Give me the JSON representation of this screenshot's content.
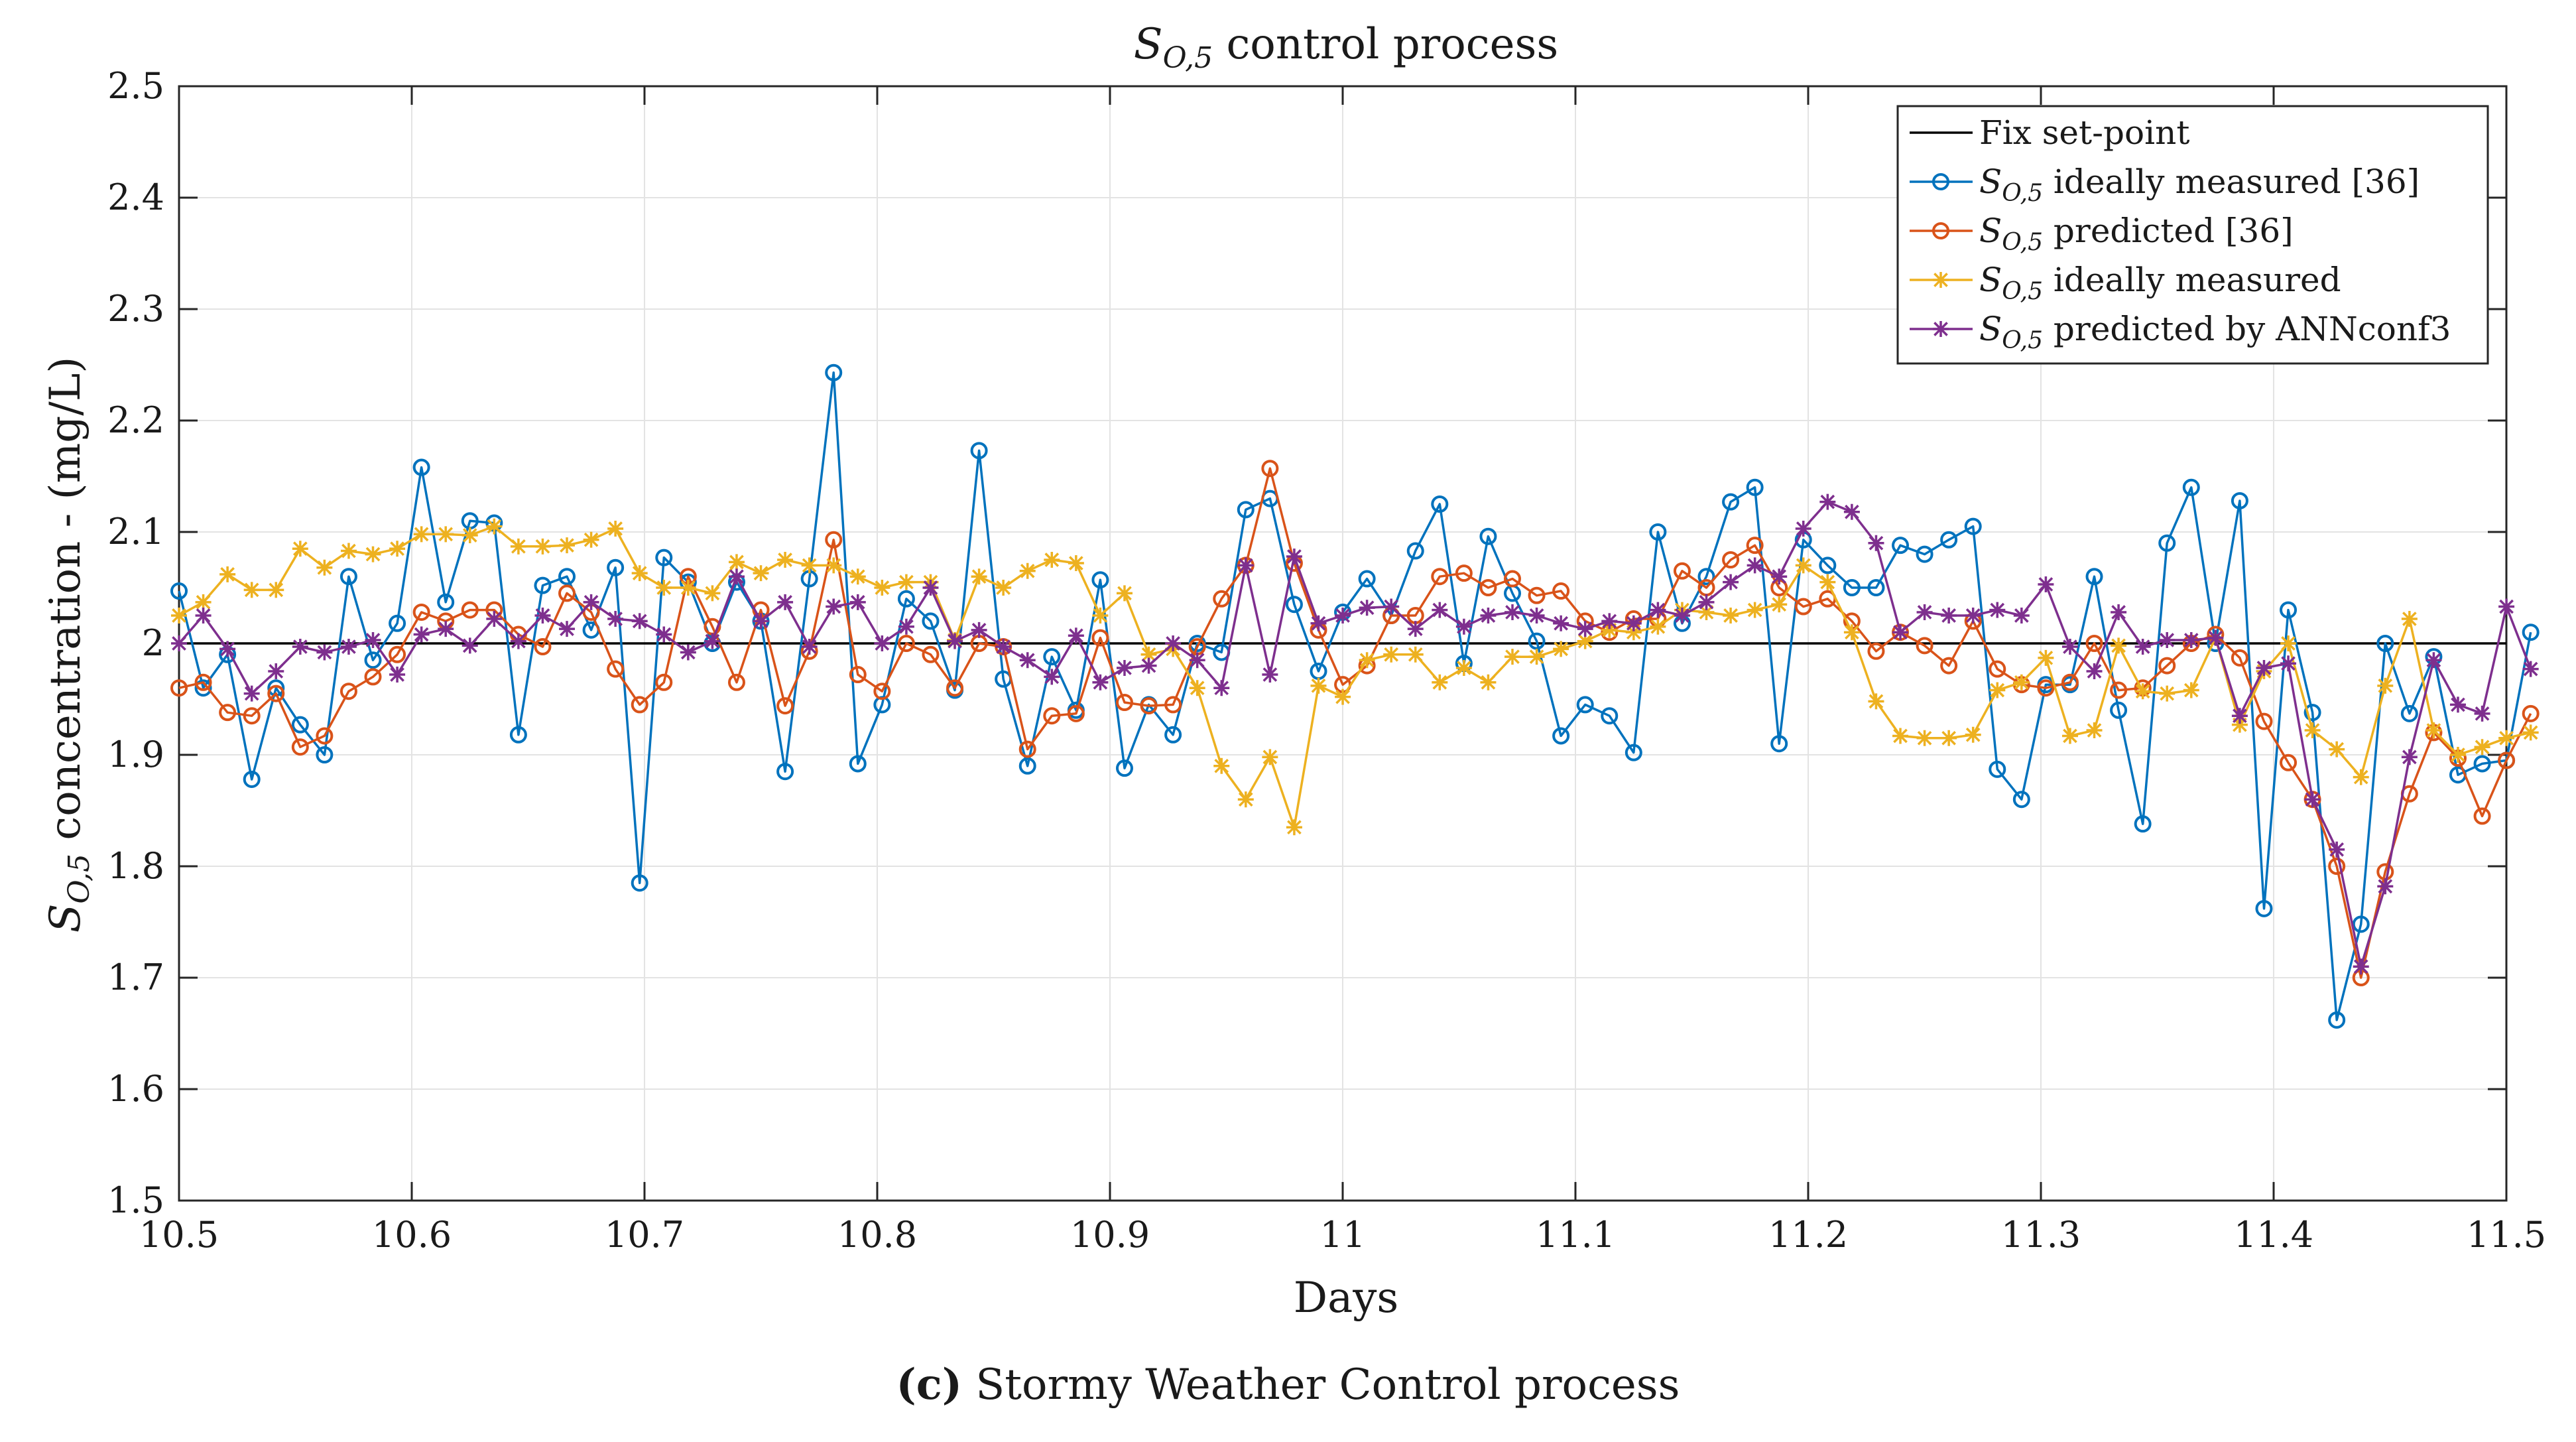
{
  "caption": {
    "label": "(c)",
    "text": "Stormy Weather Control process"
  },
  "chart_data": {
    "type": "line",
    "title": "S_{O,5} control process",
    "title_symbol": "S",
    "title_subscript": "O,5",
    "title_rest": " control process",
    "xlabel": "Days",
    "ylabel_symbol": "S",
    "ylabel_subscript": "O,5",
    "ylabel_rest": " concentration - (mg/L)",
    "xlim": [
      10.5,
      11.5
    ],
    "ylim": [
      1.5,
      2.5
    ],
    "xticks": [
      10.5,
      10.6,
      10.7,
      10.8,
      10.9,
      11,
      11.1,
      11.2,
      11.3,
      11.4,
      11.5
    ],
    "xtick_labels": [
      "10.5",
      "10.6",
      "10.7",
      "10.8",
      "10.9",
      "11",
      "11.1",
      "11.2",
      "11.3",
      "11.4",
      "11.5"
    ],
    "yticks": [
      1.5,
      1.6,
      1.7,
      1.8,
      1.9,
      2.0,
      2.1,
      2.2,
      2.3,
      2.4,
      2.5
    ],
    "ytick_labels": [
      "1.5",
      "1.6",
      "1.7",
      "1.8",
      "1.9",
      "2",
      "2.1",
      "2.2",
      "2.3",
      "2.4",
      "2.5"
    ],
    "grid": true,
    "legend_position": "top-right",
    "x_start": 10.5,
    "x_step": 0.010417,
    "setpoint": {
      "name": "Fix set-point",
      "value": 2.0,
      "color": "#000000"
    },
    "series": [
      {
        "name": "S_{O,5} ideally measured [36]",
        "legend_symbol": "S",
        "legend_subscript": "O,5",
        "legend_rest": " ideally measured [36]",
        "color": "#0072BD",
        "marker": "circle",
        "values": [
          2.047,
          1.96,
          1.99,
          1.878,
          1.96,
          1.927,
          1.9,
          2.06,
          1.985,
          2.018,
          2.158,
          2.037,
          2.11,
          2.108,
          1.918,
          2.052,
          2.06,
          2.012,
          2.068,
          1.785,
          2.077,
          2.055,
          2.0,
          2.055,
          2.02,
          1.885,
          2.058,
          2.243,
          1.892,
          1.945,
          2.04,
          2.02,
          1.958,
          2.173,
          1.968,
          1.89,
          1.988,
          1.94,
          2.057,
          1.888,
          1.945,
          1.918,
          2.0,
          1.992,
          2.12,
          2.13,
          2.035,
          1.975,
          2.028,
          2.058,
          2.025,
          2.083,
          2.125,
          1.982,
          2.096,
          2.045,
          2.002,
          1.917,
          1.945,
          1.935,
          1.902,
          2.1,
          2.018,
          2.06,
          2.127,
          2.14,
          1.91,
          2.093,
          2.07,
          2.05,
          2.05,
          2.088,
          2.08,
          2.093,
          2.105,
          1.887,
          1.86,
          1.963,
          1.963,
          2.06,
          1.94,
          1.838,
          2.09,
          2.14,
          2.0,
          2.128,
          1.762,
          2.03,
          1.938,
          1.662,
          1.748,
          2.0,
          1.937,
          1.988,
          1.882,
          1.892,
          1.895,
          2.01
        ]
      },
      {
        "name": "S_{O,5} predicted [36]",
        "legend_symbol": "S",
        "legend_subscript": "O,5",
        "legend_rest": " predicted [36]",
        "color": "#D95319",
        "marker": "circle",
        "values": [
          1.96,
          1.965,
          1.938,
          1.935,
          1.955,
          1.907,
          1.917,
          1.957,
          1.97,
          1.99,
          2.028,
          2.02,
          2.03,
          2.03,
          2.008,
          1.997,
          2.045,
          2.028,
          1.977,
          1.945,
          1.965,
          2.06,
          2.015,
          1.965,
          2.03,
          1.944,
          1.993,
          2.093,
          1.972,
          1.957,
          2.0,
          1.99,
          1.96,
          2.0,
          1.997,
          1.905,
          1.935,
          1.937,
          2.005,
          1.947,
          1.944,
          1.945,
          1.997,
          2.04,
          2.07,
          2.157,
          2.072,
          2.012,
          1.963,
          1.98,
          2.025,
          2.025,
          2.06,
          2.063,
          2.05,
          2.058,
          2.043,
          2.047,
          2.02,
          2.01,
          2.022,
          2.022,
          2.065,
          2.05,
          2.075,
          2.088,
          2.05,
          2.033,
          2.04,
          2.02,
          1.993,
          2.01,
          1.998,
          1.98,
          2.02,
          1.977,
          1.963,
          1.96,
          1.965,
          2.0,
          1.958,
          1.96,
          1.98,
          2.0,
          2.008,
          1.987,
          1.93,
          1.893,
          1.86,
          1.8,
          1.7,
          1.795,
          1.865,
          1.92,
          1.897,
          1.845,
          1.895,
          1.937
        ]
      },
      {
        "name": "S_{O,5} ideally measured",
        "legend_symbol": "S",
        "legend_subscript": "O,5",
        "legend_rest": " ideally measured",
        "color": "#EDB120",
        "marker": "asterisk",
        "values": [
          2.025,
          2.037,
          2.062,
          2.048,
          2.048,
          2.085,
          2.068,
          2.083,
          2.08,
          2.085,
          2.098,
          2.098,
          2.097,
          2.105,
          2.087,
          2.087,
          2.088,
          2.093,
          2.103,
          2.063,
          2.05,
          2.05,
          2.045,
          2.073,
          2.063,
          2.075,
          2.07,
          2.07,
          2.06,
          2.05,
          2.055,
          2.055,
          2.003,
          2.06,
          2.05,
          2.065,
          2.075,
          2.072,
          2.025,
          2.045,
          1.99,
          1.995,
          1.96,
          1.89,
          1.86,
          1.898,
          1.835,
          1.962,
          1.952,
          1.985,
          1.99,
          1.99,
          1.965,
          1.978,
          1.965,
          1.988,
          1.988,
          1.995,
          2.002,
          2.012,
          2.01,
          2.015,
          2.03,
          2.028,
          2.025,
          2.03,
          2.035,
          2.07,
          2.055,
          2.01,
          1.948,
          1.917,
          1.915,
          1.915,
          1.918,
          1.958,
          1.965,
          1.987,
          1.917,
          1.922,
          1.998,
          1.957,
          1.955,
          1.958,
          2.005,
          1.927,
          1.975,
          2.0,
          1.922,
          1.905,
          1.88,
          1.962,
          2.022,
          1.922,
          1.9,
          1.907,
          1.915,
          1.92
        ]
      },
      {
        "name": "S_{O,5} predicted by ANNconf3",
        "legend_symbol": "S",
        "legend_subscript": "O,5",
        "legend_rest": " predicted by ANNconf3",
        "color": "#7E2F8E",
        "marker": "asterisk",
        "values": [
          2.0,
          2.025,
          1.995,
          1.955,
          1.975,
          1.997,
          1.992,
          1.997,
          2.003,
          1.972,
          2.008,
          2.013,
          1.998,
          2.022,
          2.002,
          2.025,
          2.013,
          2.037,
          2.022,
          2.02,
          2.008,
          1.992,
          2.002,
          2.06,
          2.02,
          2.037,
          1.997,
          2.033,
          2.037,
          2.0,
          2.015,
          2.05,
          2.002,
          2.012,
          1.997,
          1.985,
          1.97,
          2.007,
          1.965,
          1.978,
          1.98,
          2.0,
          1.985,
          1.96,
          2.07,
          1.972,
          2.078,
          2.018,
          2.025,
          2.032,
          2.033,
          2.013,
          2.03,
          2.015,
          2.025,
          2.028,
          2.025,
          2.018,
          2.013,
          2.02,
          2.018,
          2.03,
          2.025,
          2.037,
          2.055,
          2.07,
          2.06,
          2.103,
          2.127,
          2.118,
          2.09,
          2.01,
          2.028,
          2.025,
          2.025,
          2.03,
          2.025,
          2.053,
          1.997,
          1.975,
          2.028,
          1.997,
          2.003,
          2.003,
          2.005,
          1.935,
          1.978,
          1.982,
          1.86,
          1.815,
          1.71,
          1.782,
          1.898,
          1.985,
          1.945,
          1.937,
          2.033,
          1.977
        ]
      }
    ]
  }
}
